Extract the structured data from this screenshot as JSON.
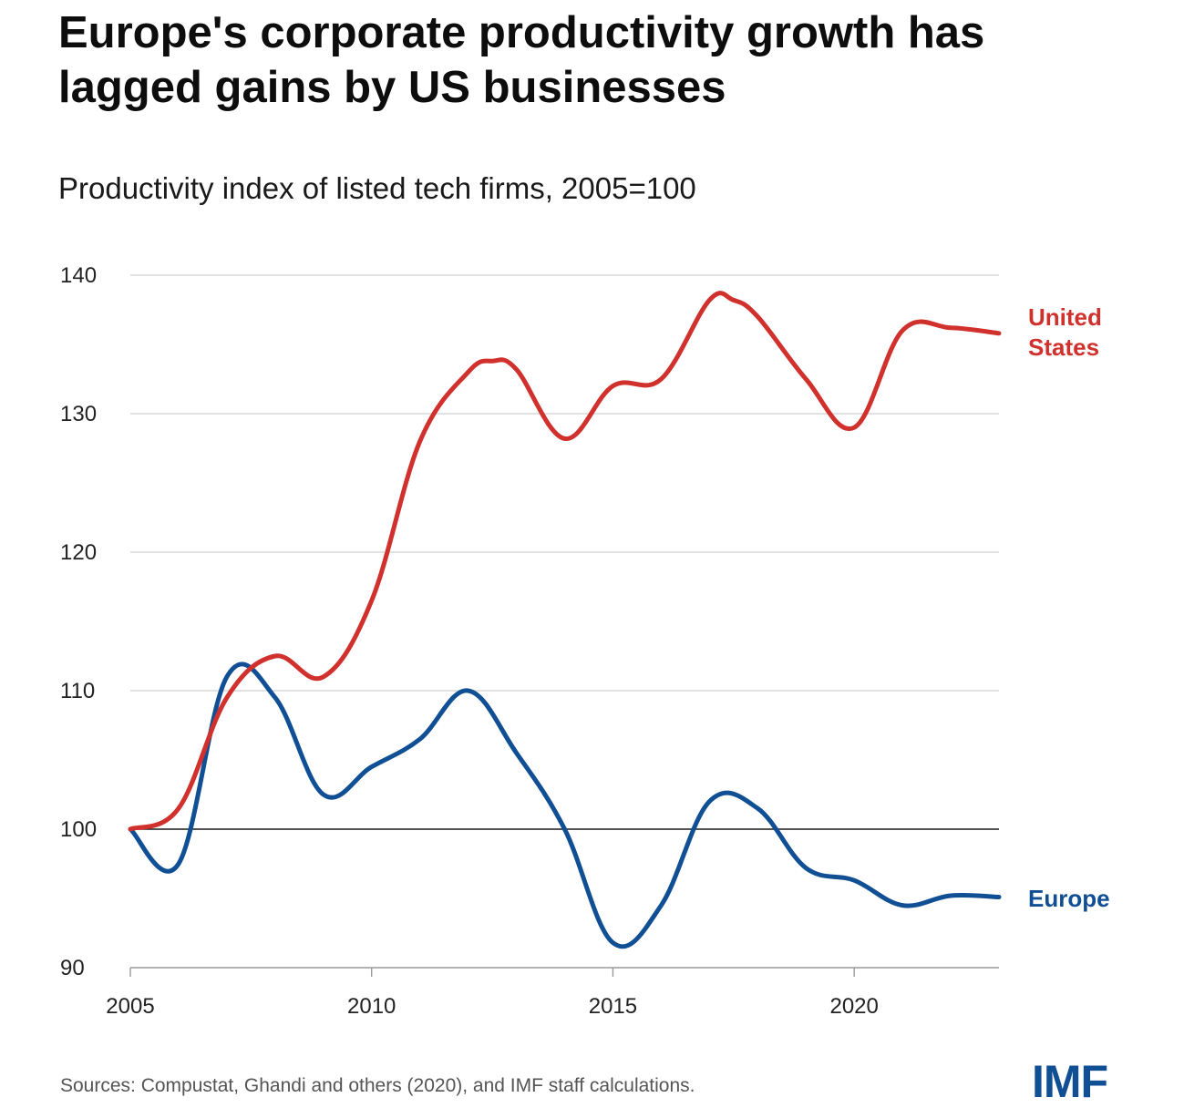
{
  "title": "Europe's corporate productivity growth has lagged gains by US businesses",
  "subtitle": "Productivity index of listed tech firms, 2005=100",
  "source": "Sources: Compustat, Ghandi and others (2020), and IMF staff calculations.",
  "logo": "IMF",
  "colors": {
    "us": "#d0312d",
    "europe": "#104f94",
    "logo": "#104f94",
    "grid": "#d9d9d9",
    "baseline": "#1a1a1a"
  },
  "chart_data": {
    "type": "line",
    "title": "Productivity index of listed tech firms, 2005=100",
    "xlabel": "",
    "ylabel": "",
    "xlim": [
      2005,
      2023
    ],
    "ylim": [
      90,
      140
    ],
    "y_ticks": [
      90,
      100,
      110,
      120,
      130,
      140
    ],
    "x_ticks": [
      2005,
      2010,
      2015,
      2020
    ],
    "baseline": 100,
    "grid": true,
    "series": [
      {
        "name": "United States",
        "label_lines": [
          "United",
          "States"
        ],
        "color": "#d0312d",
        "x": [
          2005,
          2006,
          2007,
          2008,
          2009,
          2010,
          2011,
          2012,
          2012.5,
          2013,
          2014,
          2015,
          2016,
          2017,
          2017.5,
          2018,
          2019,
          2020,
          2021,
          2022,
          2023
        ],
        "values": [
          100,
          101.5,
          109.5,
          112.5,
          111,
          116.5,
          128,
          133,
          133.8,
          133.2,
          128.2,
          132,
          132.5,
          138.2,
          138.2,
          137,
          132.5,
          129,
          136,
          136.2,
          135.8
        ]
      },
      {
        "name": "Europe",
        "label_lines": [
          "Europe"
        ],
        "color": "#104f94",
        "x": [
          2005,
          2006,
          2007,
          2008,
          2009,
          2010,
          2011,
          2012,
          2013,
          2014,
          2015,
          2016,
          2017,
          2018,
          2019,
          2020,
          2021,
          2022,
          2023
        ],
        "values": [
          100,
          97.5,
          111,
          109.5,
          102.5,
          104.5,
          106.5,
          110,
          105.5,
          100,
          91.8,
          94.5,
          102,
          101.5,
          97.2,
          96.3,
          94.5,
          95.2,
          95.1
        ]
      }
    ]
  }
}
